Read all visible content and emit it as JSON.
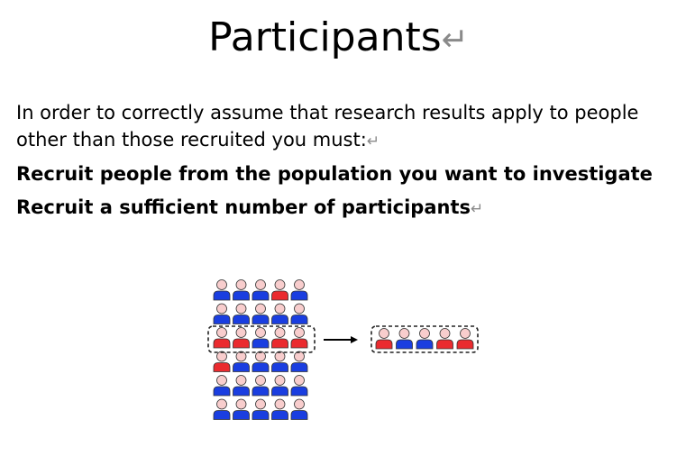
{
  "heading": {
    "title": "Participants",
    "mark": "↵"
  },
  "content": {
    "intro": "In order to correctly assume that research results apply to people other than those recruited you must:",
    "intro_mark": "↵",
    "point_1": "Recruit people from the population you want to investigate",
    "point_2": "Recruit a sufficient number of participants",
    "point_2_mark": "↵"
  },
  "figure": {
    "colors": {
      "blue": "#1a3ee0",
      "red": "#ea2b2f",
      "head": "#f8cdcd",
      "outline": "#333333"
    },
    "population": [
      [
        "blue",
        "blue",
        "blue",
        "red",
        "blue"
      ],
      [
        "blue",
        "blue",
        "blue",
        "blue",
        "blue"
      ],
      [
        "red",
        "red",
        "blue",
        "red",
        "red"
      ],
      [
        "red",
        "blue",
        "blue",
        "blue",
        "blue"
      ],
      [
        "blue",
        "blue",
        "blue",
        "blue",
        "blue"
      ],
      [
        "blue",
        "blue",
        "blue",
        "blue",
        "blue"
      ]
    ],
    "selected_row": 2,
    "sample": [
      "red",
      "blue",
      "blue",
      "red",
      "red"
    ],
    "icon_name": "person-icon",
    "arrow_icon": "right-arrow-icon"
  }
}
